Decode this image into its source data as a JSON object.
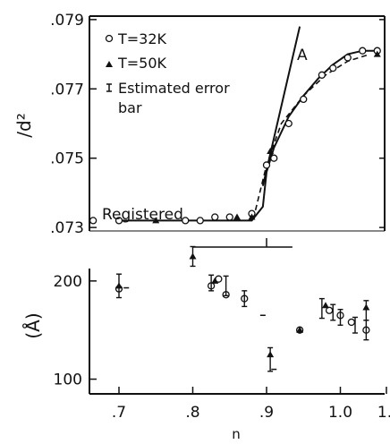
{
  "chart_data": [
    {
      "type": "scatter",
      "xlim": [
        0.66,
        1.06
      ],
      "ylim": [
        0.0729,
        0.0791
      ],
      "ylabel": "/d²",
      "yticks": [
        ".073",
        ".075",
        ".077",
        ".079"
      ],
      "ytick_values": [
        0.073,
        0.075,
        0.077,
        0.079
      ],
      "legend": [
        {
          "symbol": "circle",
          "label": "T=32K"
        },
        {
          "symbol": "triangle",
          "label": "T=50K"
        },
        {
          "symbol": "errorbar",
          "label": "Estimated error"
        },
        {
          "symbol": "none",
          "label": "bar"
        }
      ],
      "legend_position": "top-left",
      "annotations": [
        {
          "text": "Registered",
          "x": 0.73,
          "y": 0.0736
        },
        {
          "text": "A",
          "x": 0.935,
          "y": 0.0787
        }
      ],
      "series": [
        {
          "name": "T=32K",
          "marker": "circle",
          "x": [
            0.665,
            0.7,
            0.79,
            0.81,
            0.83,
            0.85,
            0.88,
            0.9,
            0.91,
            0.93,
            0.95,
            0.975,
            0.99,
            1.01,
            1.03,
            1.05
          ],
          "y": [
            0.0732,
            0.0732,
            0.0732,
            0.0732,
            0.0733,
            0.0733,
            0.0734,
            0.0748,
            0.075,
            0.076,
            0.0767,
            0.0774,
            0.0776,
            0.0779,
            0.0781,
            0.0781
          ]
        },
        {
          "name": "T=50K",
          "marker": "triangle",
          "x": [
            0.75,
            0.86,
            0.88,
            0.905,
            1.05
          ],
          "y": [
            0.0732,
            0.0733,
            0.0733,
            0.0752,
            0.078
          ]
        },
        {
          "name": "fit-solid",
          "style": "solid",
          "x": [
            0.7,
            0.88,
            0.895,
            0.9,
            0.91,
            0.93,
            0.95,
            0.97,
            0.99,
            1.01,
            1.03,
            1.05
          ],
          "y": [
            0.0732,
            0.0732,
            0.0736,
            0.0746,
            0.0753,
            0.0762,
            0.0768,
            0.0773,
            0.0777,
            0.078,
            0.0781,
            0.0781
          ]
        },
        {
          "name": "fit-dashed",
          "style": "dashed",
          "x": [
            0.885,
            0.9,
            0.92,
            0.95,
            0.98,
            1.01,
            1.04
          ],
          "y": [
            0.0735,
            0.0748,
            0.076,
            0.0768,
            0.0774,
            0.0778,
            0.078
          ]
        },
        {
          "name": "line-A",
          "style": "solid",
          "x": [
            0.895,
            0.945
          ],
          "y": [
            0.0742,
            0.0788
          ]
        }
      ]
    },
    {
      "type": "scatter",
      "xlim": [
        0.66,
        1.06
      ],
      "ylim": [
        85,
        240
      ],
      "ylabel": "(Å)",
      "yticks": [
        "100",
        "200"
      ],
      "ytick_values": [
        100,
        200
      ],
      "xlabel": "n",
      "xticks": [
        ".7",
        ".8",
        ".9",
        "1.0",
        "1."
      ],
      "xtick_values": [
        0.7,
        0.8,
        0.9,
        1.0,
        1.1
      ],
      "series": [
        {
          "name": "T=32K",
          "marker": "circle",
          "x": [
            0.7,
            0.825,
            0.835,
            0.845,
            0.87,
            0.945,
            0.985,
            1.0,
            1.015,
            1.035
          ],
          "y": [
            192,
            195,
            202,
            186,
            182,
            150,
            170,
            165,
            158,
            150
          ]
        },
        {
          "name": "T=50K",
          "marker": "triangle",
          "x": [
            0.7,
            0.8,
            0.83,
            0.905,
            0.945,
            0.98,
            1.035
          ],
          "y": [
            195,
            225,
            200,
            125,
            150,
            175,
            173
          ]
        },
        {
          "name": "errorbars",
          "marker": "errorbar",
          "x": [
            0.7,
            0.8,
            0.825,
            0.845,
            0.87,
            0.905,
            0.975,
            0.99,
            1.0,
            1.02,
            1.035,
            1.035
          ],
          "y": [
            195,
            225,
            198,
            195,
            182,
            120,
            172,
            168,
            163,
            155,
            170,
            150
          ],
          "err": [
            12,
            10,
            8,
            10,
            8,
            12,
            10,
            8,
            8,
            8,
            10,
            10
          ]
        },
        {
          "name": "small-marks",
          "marker": "dash",
          "x": [
            0.71,
            0.895,
            0.91
          ],
          "y": [
            193,
            165,
            110
          ]
        }
      ],
      "bracket": {
        "x": [
          0.8,
          0.935
        ],
        "y": 240
      }
    }
  ]
}
